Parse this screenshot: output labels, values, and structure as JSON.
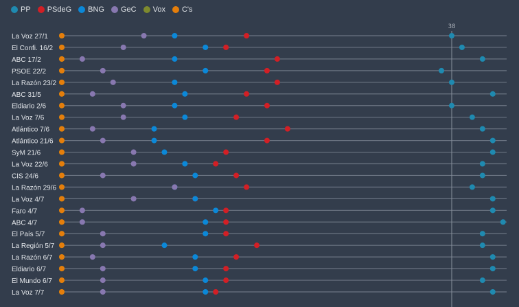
{
  "chart_data": {
    "type": "scatter",
    "title": "",
    "xlabel": "",
    "ylabel": "",
    "reference_line": {
      "value": 38,
      "label": "38"
    },
    "xlim": [
      0,
      43.3
    ],
    "grid": false,
    "legend_position": "top-left",
    "series": [
      {
        "name": "PP",
        "color": "#1f8ab0"
      },
      {
        "name": "PSdeG",
        "color": "#d21f25"
      },
      {
        "name": "BNG",
        "color": "#0b88d8"
      },
      {
        "name": "GeC",
        "color": "#8878b0"
      },
      {
        "name": "Vox",
        "color": "#7e8a2e"
      },
      {
        "name": "C's",
        "color": "#e57e0b"
      }
    ],
    "polls": [
      {
        "label": "La Voz 27/1",
        "values": [
          38,
          18,
          11,
          8,
          0,
          0
        ]
      },
      {
        "label": "El Confi. 16/2",
        "values": [
          39,
          16,
          14,
          6,
          0,
          0
        ]
      },
      {
        "label": "ABC 17/2",
        "values": [
          41,
          21,
          11,
          2,
          0,
          0
        ]
      },
      {
        "label": "PSOE 22/2",
        "values": [
          37,
          20,
          14,
          4,
          0,
          0
        ]
      },
      {
        "label": "La Razón 23/2",
        "values": [
          38,
          21,
          11,
          5,
          0,
          0
        ]
      },
      {
        "label": "ABC 31/5",
        "values": [
          42,
          18,
          12,
          3,
          0,
          0
        ]
      },
      {
        "label": "Eldiario 2/6",
        "values": [
          38,
          20,
          11,
          6,
          0,
          0
        ]
      },
      {
        "label": "La Voz 7/6",
        "values": [
          40,
          17,
          12,
          6,
          0,
          0
        ]
      },
      {
        "label": "Atlántico 7/6",
        "values": [
          41,
          22,
          9,
          3,
          0,
          0
        ]
      },
      {
        "label": "Atlántico 21/6",
        "values": [
          42,
          20,
          9,
          4,
          0,
          0
        ]
      },
      {
        "label": "SyM 21/6",
        "values": [
          42,
          16,
          10,
          7,
          0,
          0
        ]
      },
      {
        "label": "La Voz 22/6",
        "values": [
          41,
          15,
          12,
          7,
          0,
          0
        ]
      },
      {
        "label": "CIS 24/6",
        "values": [
          41,
          17,
          13,
          4,
          0,
          0
        ]
      },
      {
        "label": "La Razón 29/6",
        "values": [
          40,
          18,
          11,
          11,
          0,
          0
        ]
      },
      {
        "label": "La Voz 4/7",
        "values": [
          42,
          13,
          13,
          7,
          0,
          0
        ]
      },
      {
        "label": "Faro 4/7",
        "values": [
          42,
          16,
          15,
          2,
          0,
          0
        ]
      },
      {
        "label": "ABC 4/7",
        "values": [
          43,
          16,
          14,
          2,
          0,
          0
        ]
      },
      {
        "label": "El País 5/7",
        "values": [
          41,
          16,
          14,
          4,
          0,
          0
        ]
      },
      {
        "label": "La Región 5/7",
        "values": [
          41,
          19,
          10,
          4,
          0,
          0
        ]
      },
      {
        "label": "La Razón 6/7",
        "values": [
          42,
          17,
          13,
          3,
          0,
          0
        ]
      },
      {
        "label": "Eldiario 6/7",
        "values": [
          42,
          16,
          13,
          4,
          0,
          0
        ]
      },
      {
        "label": "El Mundo 6/7",
        "values": [
          41,
          16,
          14,
          4,
          0,
          0
        ]
      },
      {
        "label": "La Voz 7/7",
        "values": [
          42,
          15,
          14,
          4,
          0,
          0
        ]
      }
    ]
  }
}
